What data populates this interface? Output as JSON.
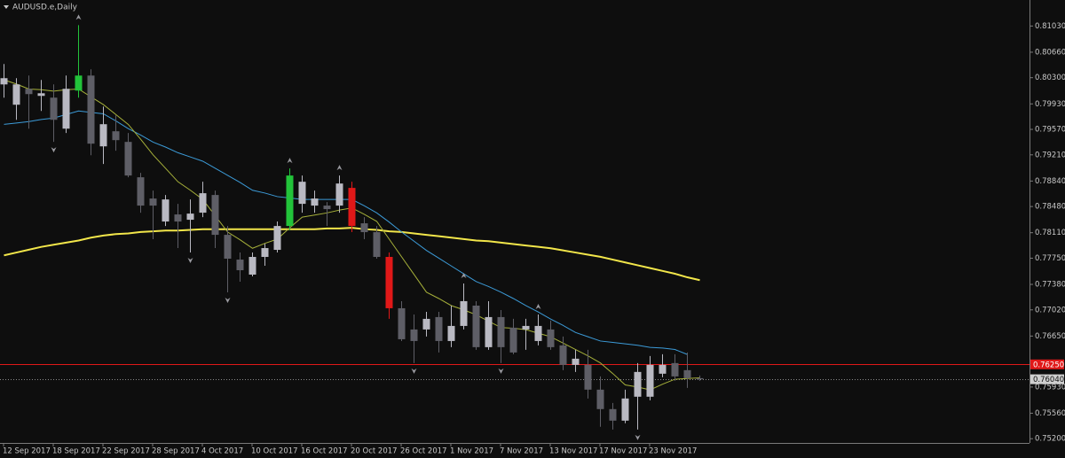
{
  "chart_data": {
    "type": "candlestick",
    "title": "AUDUSD.e,Daily",
    "categories": [
      "12 Sep 2017",
      null,
      null,
      null,
      "18 Sep 2017",
      null,
      null,
      null,
      "22 Sep 2017",
      null,
      null,
      null,
      "28 Sep 2017",
      null,
      null,
      null,
      "4 Oct 2017",
      null,
      null,
      null,
      "10 Oct 2017",
      null,
      null,
      null,
      "16 Oct 2017",
      null,
      null,
      null,
      "20 Oct 2017",
      null,
      null,
      null,
      "26 Oct 2017",
      null,
      null,
      null,
      "1 Nov 2017",
      null,
      null,
      null,
      "7 Nov 2017",
      null,
      null,
      null,
      "13 Nov 2017",
      null,
      null,
      null,
      "17 Nov 2017",
      null,
      null,
      null,
      "23 Nov 2017",
      null,
      null,
      null,
      null
    ],
    "open": [
      0.80205,
      0.79918,
      0.80143,
      0.80043,
      0.80018,
      0.7958,
      0.80118,
      0.8033,
      0.7933,
      0.79543,
      0.79393,
      0.78893,
      0.78593,
      0.78268,
      0.78368,
      0.78293,
      0.78393,
      0.78643,
      0.7808,
      0.7773,
      0.77518,
      0.77768,
      0.77868,
      0.78205,
      0.78518,
      0.78493,
      0.78493,
      0.78493,
      0.78743,
      0.78243,
      0.78118,
      0.77768,
      0.77043,
      0.76743,
      0.76743,
      0.76918,
      0.7658,
      0.76793,
      0.7708,
      0.76493,
      0.76918,
      0.76768,
      0.76743,
      0.7658,
      0.76743,
      0.76518,
      0.76243,
      0.76243,
      0.75893,
      0.75618,
      0.75455,
      0.75793,
      0.75793,
      0.76118,
      0.76268,
      0.76168,
      0.76055
    ],
    "high": [
      0.80493,
      0.80293,
      0.8033,
      0.80268,
      0.80205,
      0.8033,
      0.81043,
      0.80418,
      0.79893,
      0.79768,
      0.79518,
      0.78955,
      0.78705,
      0.78643,
      0.78518,
      0.7858,
      0.7883,
      0.78705,
      0.78205,
      0.7783,
      0.7783,
      0.77955,
      0.78268,
      0.79018,
      0.78918,
      0.78705,
      0.78543,
      0.78918,
      0.7883,
      0.7833,
      0.78205,
      0.7783,
      0.77143,
      0.76955,
      0.76993,
      0.76993,
      0.7708,
      0.77393,
      0.77143,
      0.77143,
      0.77018,
      0.76893,
      0.76893,
      0.76955,
      0.76868,
      0.76643,
      0.76455,
      0.76455,
      0.7608,
      0.75705,
      0.75893,
      0.76268,
      0.76368,
      0.76393,
      0.76393,
      0.76418,
      0.76093
    ],
    "low": [
      0.80018,
      0.79705,
      0.7958,
      0.7983,
      0.79393,
      0.79518,
      0.80018,
      0.79205,
      0.7908,
      0.79268,
      0.78893,
      0.78393,
      0.78018,
      0.78205,
      0.77893,
      0.7783,
      0.7833,
      0.77893,
      0.77268,
      0.77418,
      0.77493,
      0.77643,
      0.7783,
      0.78143,
      0.78393,
      0.78393,
      0.78205,
      0.78393,
      0.78118,
      0.78018,
      0.77743,
      0.76893,
      0.7658,
      0.76268,
      0.76643,
      0.76418,
      0.76493,
      0.76743,
      0.76455,
      0.76455,
      0.76268,
      0.76393,
      0.76455,
      0.76518,
      0.76455,
      0.76168,
      0.76143,
      0.75768,
      0.75368,
      0.7533,
      0.75418,
      0.7533,
      0.75743,
      0.76068,
      0.76018,
      0.75918,
      0.76018
    ],
    "close": [
      0.80293,
      0.80205,
      0.80068,
      0.8008,
      0.79705,
      0.80143,
      0.8033,
      0.79368,
      0.79643,
      0.79418,
      0.78918,
      0.78493,
      0.78493,
      0.7858,
      0.78268,
      0.7838,
      0.78668,
      0.7808,
      0.77743,
      0.7758,
      0.77768,
      0.77893,
      0.78205,
      0.78918,
      0.7883,
      0.78593,
      0.78443,
      0.78805,
      0.78205,
      0.78118,
      0.77768,
      0.77043,
      0.76605,
      0.7658,
      0.76893,
      0.7658,
      0.76793,
      0.77143,
      0.76493,
      0.76918,
      0.76493,
      0.76418,
      0.76793,
      0.76793,
      0.76493,
      0.76243,
      0.7633,
      0.75893,
      0.75618,
      0.75455,
      0.75768,
      0.76143,
      0.76243,
      0.76243,
      0.7608,
      0.76055,
      0.7604
    ],
    "up_color": "#b9b9c2",
    "down_color": "#5e5e66",
    "highlights": [
      {
        "index": 6,
        "color": "#22c33a"
      },
      {
        "index": 23,
        "color": "#22c33a"
      },
      {
        "index": 28,
        "color": "#e01818"
      },
      {
        "index": 31,
        "color": "#e01818"
      }
    ],
    "fractals_up": [
      6,
      23,
      27,
      37,
      43
    ],
    "fractals_down": [
      4,
      15,
      18,
      33,
      40,
      51
    ],
    "overlays": [
      {
        "color": "#f2e64a",
        "values": [
          0.7779,
          0.7783,
          0.7787,
          0.7791,
          0.7794,
          0.7797,
          0.78,
          0.7804,
          0.7807,
          0.7809,
          0.781,
          0.7812,
          0.7813,
          0.7814,
          0.7814,
          0.7815,
          0.7816,
          0.7816,
          0.7816,
          0.7816,
          0.7816,
          0.7816,
          0.7816,
          0.7816,
          0.7816,
          0.7816,
          0.7817,
          0.7817,
          0.7818,
          0.7816,
          0.7815,
          0.7813,
          0.7812,
          0.781,
          0.7808,
          0.7806,
          0.7804,
          0.7802,
          0.78,
          0.7799,
          0.7797,
          0.7795,
          0.7793,
          0.7791,
          0.7789,
          0.7786,
          0.7783,
          0.778,
          0.7777,
          0.7773,
          0.7769,
          0.7765,
          0.7761,
          0.7757,
          0.7753,
          0.7748,
          0.7744
        ]
      },
      {
        "color": "#3c9bd8",
        "values": [
          0.7964,
          0.7966,
          0.7968,
          0.7971,
          0.7973,
          0.7978,
          0.7983,
          0.7981,
          0.7979,
          0.7969,
          0.7958,
          0.7949,
          0.7939,
          0.7932,
          0.7924,
          0.7918,
          0.7912,
          0.7902,
          0.7892,
          0.7882,
          0.7871,
          0.7867,
          0.7862,
          0.786,
          0.7858,
          0.7858,
          0.7858,
          0.7858,
          0.7858,
          0.7849,
          0.7839,
          0.7826,
          0.7812,
          0.7799,
          0.7786,
          0.7775,
          0.7764,
          0.7753,
          0.7742,
          0.7735,
          0.7727,
          0.7718,
          0.7708,
          0.7699,
          0.7689,
          0.768,
          0.767,
          0.7664,
          0.7658,
          0.7656,
          0.7654,
          0.7652,
          0.7649,
          0.7648,
          0.7646,
          0.7639,
          null
        ]
      },
      {
        "color": "#a6b03a",
        "values": [
          0.8027,
          0.8021,
          0.8014,
          0.8013,
          0.8011,
          0.8013,
          0.8014,
          0.8003,
          0.7992,
          0.7978,
          0.7964,
          0.7943,
          0.7921,
          0.7902,
          0.7883,
          0.7871,
          0.7858,
          0.7835,
          0.7812,
          0.7801,
          0.7789,
          0.7796,
          0.7802,
          0.7818,
          0.7833,
          0.7836,
          0.7839,
          0.7843,
          0.7846,
          0.7837,
          0.7827,
          0.7802,
          0.7777,
          0.7752,
          0.7727,
          0.7718,
          0.7708,
          0.7702,
          0.7695,
          0.7686,
          0.7677,
          0.7676,
          0.7674,
          0.7669,
          0.7664,
          0.7655,
          0.7646,
          0.7637,
          0.7627,
          0.7612,
          0.7596,
          0.7593,
          0.7589,
          0.7597,
          0.7604,
          0.7605,
          0.7606
        ]
      }
    ],
    "price_lines": [
      {
        "value": 0.7625,
        "label": "0.76250",
        "color": "#e01818",
        "style": "solid"
      },
      {
        "value": 0.7604,
        "label": "0.76040",
        "color": "#8a8a8a",
        "style": "dotted"
      }
    ],
    "ylim": [
      0.7514,
      0.8136
    ],
    "yticks": [
      {
        "value": 0.8103,
        "label": "0.81030"
      },
      {
        "value": 0.8066,
        "label": "0.80660"
      },
      {
        "value": 0.803,
        "label": "0.80300"
      },
      {
        "value": 0.7993,
        "label": "0.79930"
      },
      {
        "value": 0.7957,
        "label": "0.79570"
      },
      {
        "value": 0.7921,
        "label": "0.79210"
      },
      {
        "value": 0.7884,
        "label": "0.78840"
      },
      {
        "value": 0.7848,
        "label": "0.78480"
      },
      {
        "value": 0.7811,
        "label": "0.78110"
      },
      {
        "value": 0.7775,
        "label": "0.77750"
      },
      {
        "value": 0.7738,
        "label": "0.77380"
      },
      {
        "value": 0.7702,
        "label": "0.77020"
      },
      {
        "value": 0.7665,
        "label": "0.76650"
      },
      {
        "value": 0.7593,
        "label": "0.75930"
      },
      {
        "value": 0.7556,
        "label": "0.75560"
      },
      {
        "value": 0.752,
        "label": "0.75200"
      }
    ]
  }
}
